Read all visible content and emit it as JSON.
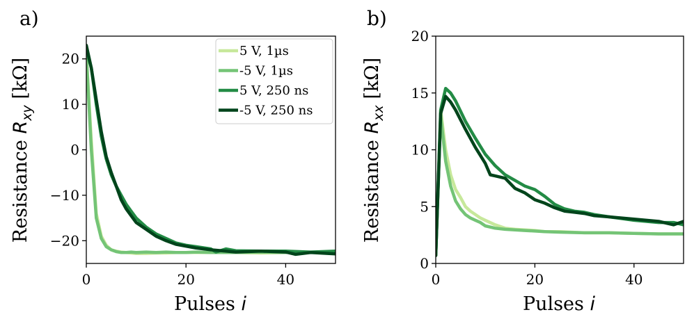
{
  "chart_data": [
    {
      "type": "line",
      "panel_label": "a)",
      "xlabel": "Pulses",
      "xlabel_var": "i",
      "ylabel": "Resistance",
      "ylabel_var": "R",
      "ylabel_sub": "xy",
      "ylabel_unit": "[kΩ]",
      "xlim": [
        0,
        50
      ],
      "ylim": [
        -25,
        25
      ],
      "xticks": [
        0,
        20,
        40
      ],
      "yticks": [
        -20,
        -10,
        0,
        10,
        20
      ],
      "grid": false,
      "legend_position": "top-right",
      "series": [
        {
          "name": "5 V, 1µs",
          "color": "#c7e89b",
          "x": [
            0,
            1,
            2,
            3,
            4,
            5,
            6,
            7,
            8,
            9,
            10,
            12,
            14,
            16,
            18,
            20,
            22,
            25,
            30,
            35,
            40,
            45,
            50
          ],
          "y": [
            21,
            2,
            -14,
            -19,
            -21,
            -22,
            -22.3,
            -22.5,
            -22.6,
            -22.7,
            -22.8,
            -22.8,
            -22.7,
            -22.7,
            -22.6,
            -22.6,
            -22.6,
            -22.6,
            -22.6,
            -22.7,
            -22.6,
            -22.6,
            -22.5
          ]
        },
        {
          "name": "-5 V, 1µs",
          "color": "#74c476",
          "x": [
            0,
            1,
            2,
            3,
            4,
            5,
            6,
            7,
            8,
            9,
            10,
            12,
            14,
            16,
            18,
            20,
            22,
            25,
            30,
            35,
            40,
            45,
            50
          ],
          "y": [
            21,
            0,
            -15,
            -19.5,
            -21.3,
            -22,
            -22.4,
            -22.6,
            -22.6,
            -22.5,
            -22.6,
            -22.5,
            -22.6,
            -22.5,
            -22.6,
            -22.6,
            -22.5,
            -22.6,
            -22.6,
            -22.5,
            -22.6,
            -22.6,
            -22.6
          ]
        },
        {
          "name": "5 V, 250 ns",
          "color": "#238b45",
          "x": [
            0,
            1,
            2,
            3,
            4,
            5,
            6,
            7,
            8,
            9,
            10,
            12,
            14,
            16,
            18,
            20,
            22,
            25,
            26,
            28,
            30,
            35,
            40,
            45,
            50
          ],
          "y": [
            22,
            18,
            10,
            3,
            -2,
            -5.5,
            -8,
            -10,
            -12,
            -13.5,
            -15,
            -17,
            -18.5,
            -19.5,
            -20.5,
            -21,
            -21.3,
            -21.8,
            -22.5,
            -21.8,
            -22.2,
            -22.3,
            -22.3,
            -22.5,
            -22.3
          ]
        },
        {
          "name": "-5 V, 250 ns",
          "color": "#00441b",
          "x": [
            0,
            1,
            2,
            3,
            4,
            5,
            6,
            7,
            8,
            9,
            10,
            12,
            14,
            16,
            18,
            20,
            22,
            25,
            28,
            30,
            35,
            40,
            42,
            45,
            50
          ],
          "y": [
            23,
            18,
            11,
            4,
            -1.5,
            -5,
            -8,
            -11,
            -13,
            -14.5,
            -16,
            -17.5,
            -19,
            -20,
            -20.8,
            -21.2,
            -21.6,
            -22,
            -22.3,
            -22.5,
            -22.3,
            -22.5,
            -23,
            -22.6,
            -22.9
          ]
        }
      ]
    },
    {
      "type": "line",
      "panel_label": "b)",
      "xlabel": "Pulses",
      "xlabel_var": "i",
      "ylabel": "Resistance",
      "ylabel_var": "R",
      "ylabel_sub": "xx",
      "ylabel_unit": "[kΩ]",
      "xlim": [
        0,
        50
      ],
      "ylim": [
        0,
        20
      ],
      "xticks": [
        0,
        20,
        40
      ],
      "yticks": [
        0,
        5,
        10,
        15,
        20
      ],
      "grid": false,
      "series": [
        {
          "name": "5 V, 1µs",
          "color": "#c7e89b",
          "x": [
            0,
            1,
            2,
            3,
            4,
            5,
            6,
            7,
            8,
            9,
            10,
            12,
            14,
            16,
            18,
            20,
            22,
            25,
            30,
            35,
            40,
            45,
            50
          ],
          "y": [
            0.7,
            13.5,
            10,
            7.8,
            6.5,
            5.8,
            5,
            4.6,
            4.3,
            4,
            3.8,
            3.4,
            3.1,
            3,
            2.95,
            2.9,
            2.8,
            2.8,
            2.7,
            2.7,
            2.65,
            2.6,
            2.6
          ]
        },
        {
          "name": "-5 V, 1µs",
          "color": "#74c476",
          "x": [
            0,
            1,
            2,
            3,
            4,
            5,
            6,
            7,
            8,
            9,
            10,
            12,
            14,
            16,
            18,
            20,
            22,
            25,
            30,
            35,
            40,
            45,
            50
          ],
          "y": [
            0.7,
            13,
            9,
            6.8,
            5.5,
            4.8,
            4.3,
            4,
            3.8,
            3.6,
            3.3,
            3.1,
            3,
            2.95,
            2.9,
            2.85,
            2.8,
            2.75,
            2.7,
            2.7,
            2.65,
            2.6,
            2.6
          ]
        },
        {
          "name": "5 V, 250 ns",
          "color": "#238b45",
          "x": [
            0,
            1,
            2,
            3,
            4,
            6,
            8,
            10,
            12,
            14,
            16,
            18,
            20,
            22,
            24,
            26,
            28,
            30,
            32,
            35,
            40,
            45,
            48,
            50
          ],
          "y": [
            0.7,
            13.5,
            15.4,
            15,
            14.3,
            12.5,
            11,
            9.6,
            8.6,
            7.8,
            7.3,
            6.8,
            6.5,
            5.9,
            5.2,
            4.8,
            4.6,
            4.5,
            4.3,
            4.1,
            3.8,
            3.6,
            3.6,
            3.4
          ]
        },
        {
          "name": "-5 V, 250 ns",
          "color": "#00441b",
          "x": [
            0,
            1,
            2,
            3,
            4,
            6,
            8,
            10,
            11,
            12,
            14,
            16,
            18,
            20,
            22,
            24,
            26,
            28,
            30,
            32,
            35,
            40,
            45,
            48,
            50
          ],
          "y": [
            0.7,
            13.2,
            14.7,
            14.2,
            13.5,
            11.8,
            10.2,
            8.8,
            7.8,
            7.7,
            7.5,
            6.6,
            6.2,
            5.6,
            5.3,
            4.9,
            4.6,
            4.5,
            4.4,
            4.2,
            4.1,
            3.9,
            3.7,
            3.4,
            3.7
          ]
        }
      ]
    }
  ]
}
